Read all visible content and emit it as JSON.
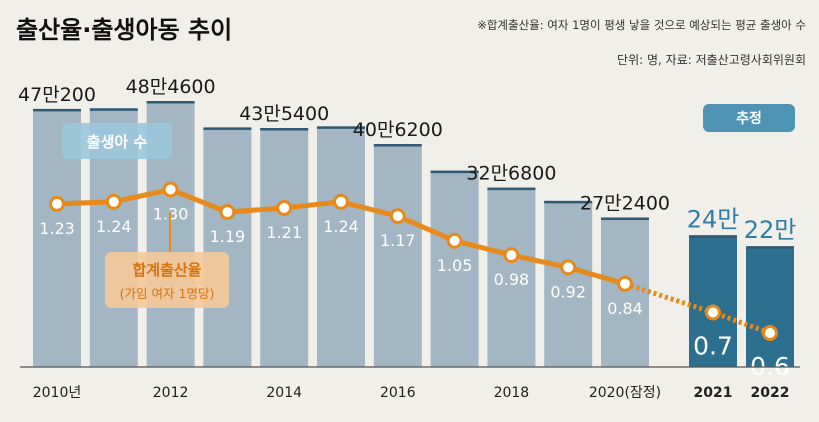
{
  "header": {
    "title": "출산율·출생아동 추이",
    "note": "※합계출산율: 여자 1명이 평생 낳을 것으로 예상되는 평균 출생아 수",
    "source": "단위: 명, 자료: 저출산고령사회위원회"
  },
  "labels": {
    "births_series": "출생아 수",
    "rate_series": "합계출산율",
    "rate_subtitle": "(가임 여자 1명당)",
    "estimate": "추정"
  },
  "colors": {
    "bar_actual": "#a3b6c3",
    "bar_estimate": "#2c6f8f",
    "bar_cap": "#2e5a76",
    "rate_line": "#e8891b",
    "value_label_estimate": "#2e7ea6",
    "badge": "#4f94b4",
    "axis_text": "#222222"
  },
  "chart_data": {
    "type": "bar",
    "categories": [
      "2010년",
      "",
      "2012",
      "",
      "2014",
      "",
      "2016",
      "",
      "2018",
      "",
      "2020(잠정)",
      "2021",
      "2022"
    ],
    "x": [
      2010,
      2011,
      2012,
      2013,
      2014,
      2015,
      2016,
      2017,
      2018,
      2019,
      2020,
      2021,
      2022
    ],
    "series": [
      {
        "name": "출생아 수",
        "type": "bar",
        "values": [
          470200,
          471300,
          484600,
          436500,
          435400,
          438400,
          406200,
          357800,
          326800,
          302700,
          272400,
          240000,
          220000
        ],
        "value_labels": [
          "47만200",
          "",
          "48만4600",
          "",
          "43만5400",
          "",
          "40만6200",
          "",
          "32만6800",
          "",
          "27만2400",
          "24만",
          "22만"
        ]
      },
      {
        "name": "합계출산율",
        "type": "line",
        "values": [
          1.23,
          1.24,
          1.3,
          1.19,
          1.21,
          1.24,
          1.17,
          1.05,
          0.98,
          0.92,
          0.84,
          0.7,
          0.6
        ],
        "value_labels": [
          "1.23",
          "1.24",
          "1.30",
          "1.19",
          "1.21",
          "1.24",
          "1.17",
          "1.05",
          "0.98",
          "0.92",
          "0.84",
          "0.7",
          "0.6"
        ]
      }
    ],
    "estimated_from_index": 11
  }
}
